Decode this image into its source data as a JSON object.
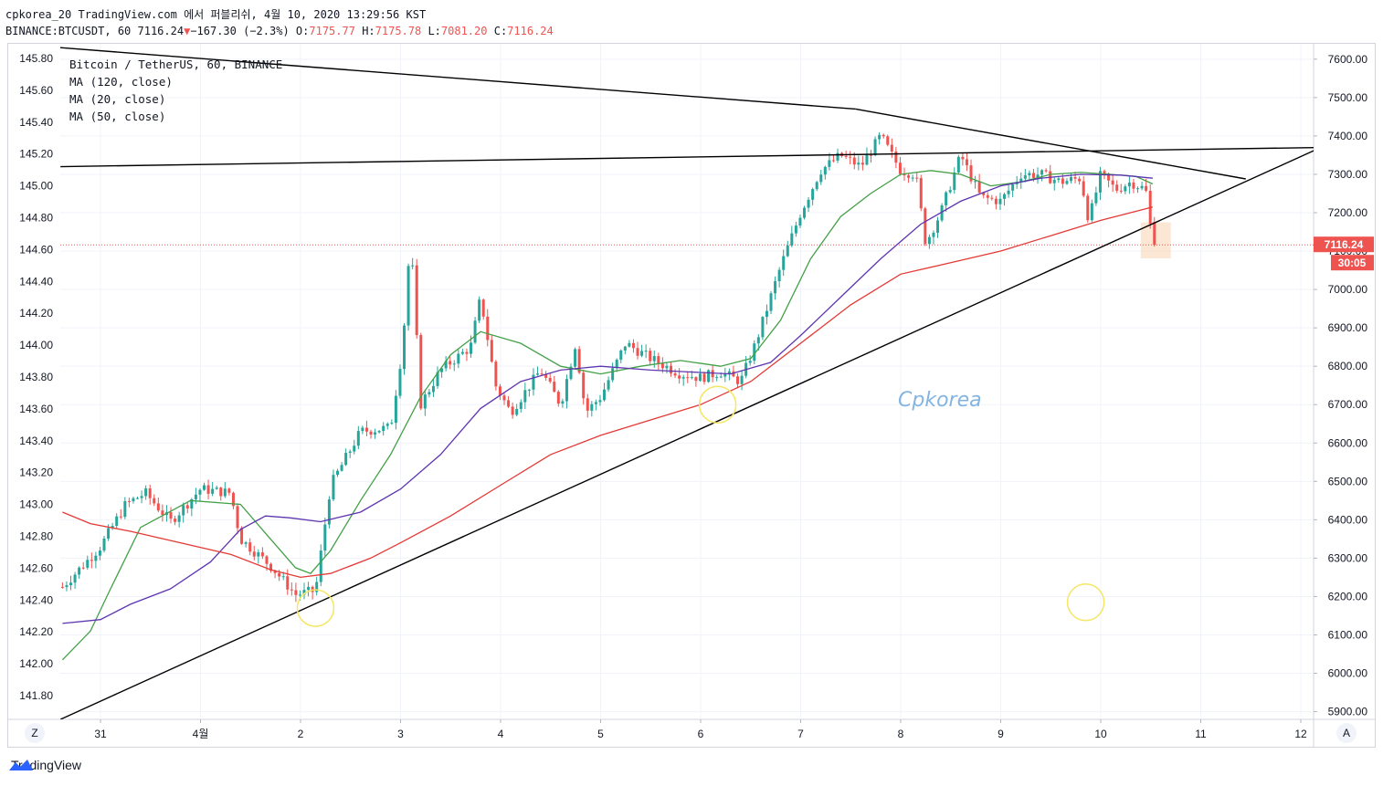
{
  "header": {
    "line1": "cpkorea_20 TradingView.com 에서 퍼블리쉬, 4월 10, 2020 13:29:56 KST",
    "line2_symbol": "BINANCE:BTCUSDT, 60 7116.24",
    "change_arrow": "▼",
    "change": "−167.30 (−2.3%)",
    "o_label": "O:",
    "o_value": "7175.77",
    "h_label": "H:",
    "h_value": "7175.78",
    "l_label": "L:",
    "l_value": "7081.20",
    "c_label": "C:",
    "c_value": "7116.24"
  },
  "legend": {
    "title": "Bitcoin / TetherUS, 60, BINANCE",
    "ma1": "MA (120, close)",
    "ma2": "MA (20, close)",
    "ma3": "MA (50, close)"
  },
  "watermark": "Cpkorea",
  "price_badge": {
    "value": "7116.24",
    "countdown": "30:05"
  },
  "footer": {
    "brand": "TradingView",
    "left_button": "Z",
    "right_button": "A"
  },
  "colors": {
    "up": "#26a69a",
    "down": "#ef5350",
    "ma120": "#e53935",
    "ma20": "#43a047",
    "ma50": "#5e35b1",
    "trendline": "#000000",
    "highlight_circle": "#f5e663",
    "watermark": "#6fa8dc"
  },
  "chart_data": {
    "type": "candlestick",
    "title": "Bitcoin / TetherUS, 60, BINANCE",
    "left_axis_ticks": [
      "145.80",
      "145.60",
      "145.40",
      "145.20",
      "145.00",
      "144.80",
      "144.60",
      "144.40",
      "144.20",
      "144.00",
      "143.80",
      "143.60",
      "143.40",
      "143.20",
      "143.00",
      "142.80",
      "142.60",
      "142.40",
      "142.20",
      "142.00",
      "141.80"
    ],
    "right_axis_ticks": [
      "7600.00",
      "7500.00",
      "7400.00",
      "7300.00",
      "7200.00",
      "7100.00",
      "7000.00",
      "6900.00",
      "6800.00",
      "6700.00",
      "6600.00",
      "6500.00",
      "6400.00",
      "6300.00",
      "6200.00",
      "6100.00",
      "6000.00",
      "5900.00"
    ],
    "x_ticks": [
      "31",
      "4월",
      "2",
      "3",
      "4",
      "5",
      "6",
      "7",
      "8",
      "9",
      "10",
      "11",
      "12"
    ],
    "ylim": [
      5880,
      7640
    ],
    "x_range_days": [
      0,
      12.1
    ],
    "day_ticks_values": [
      0,
      1,
      2,
      3,
      4,
      5,
      6,
      7,
      8,
      9,
      10,
      11,
      12
    ],
    "anchors": [
      [
        -0.38,
        6225
      ],
      [
        0.0,
        6330
      ],
      [
        0.25,
        6440
      ],
      [
        0.45,
        6470
      ],
      [
        0.7,
        6395
      ],
      [
        1.0,
        6480
      ],
      [
        1.3,
        6470
      ],
      [
        1.4,
        6350
      ],
      [
        1.7,
        6280
      ],
      [
        1.95,
        6205
      ],
      [
        2.15,
        6215
      ],
      [
        2.3,
        6490
      ],
      [
        2.6,
        6630
      ],
      [
        2.9,
        6640
      ],
      [
        3.02,
        6850
      ],
      [
        3.1,
        7140
      ],
      [
        3.2,
        6700
      ],
      [
        3.4,
        6790
      ],
      [
        3.7,
        6850
      ],
      [
        3.8,
        6980
      ],
      [
        3.95,
        6750
      ],
      [
        4.1,
        6680
      ],
      [
        4.4,
        6790
      ],
      [
        4.6,
        6700
      ],
      [
        4.75,
        6860
      ],
      [
        4.85,
        6680
      ],
      [
        5.0,
        6720
      ],
      [
        5.25,
        6860
      ],
      [
        5.5,
        6820
      ],
      [
        5.8,
        6780
      ],
      [
        6.0,
        6770
      ],
      [
        6.2,
        6785
      ],
      [
        6.4,
        6760
      ],
      [
        6.55,
        6860
      ],
      [
        6.8,
        7060
      ],
      [
        7.0,
        7200
      ],
      [
        7.2,
        7310
      ],
      [
        7.4,
        7350
      ],
      [
        7.6,
        7320
      ],
      [
        7.8,
        7400
      ],
      [
        8.0,
        7310
      ],
      [
        8.15,
        7300
      ],
      [
        8.25,
        7120
      ],
      [
        8.4,
        7200
      ],
      [
        8.6,
        7350
      ],
      [
        8.8,
        7240
      ],
      [
        9.0,
        7230
      ],
      [
        9.2,
        7300
      ],
      [
        9.4,
        7300
      ],
      [
        9.6,
        7280
      ],
      [
        9.8,
        7290
      ],
      [
        9.88,
        7180
      ],
      [
        10.0,
        7300
      ],
      [
        10.15,
        7260
      ],
      [
        10.3,
        7280
      ],
      [
        10.45,
        7260
      ],
      [
        10.52,
        7116
      ]
    ],
    "last_price": 7116.24,
    "moving_averages": {
      "ma20": [
        [
          -0.38,
          6035
        ],
        [
          -0.1,
          6110
        ],
        [
          0.1,
          6220
        ],
        [
          0.4,
          6380
        ],
        [
          0.9,
          6450
        ],
        [
          1.4,
          6440
        ],
        [
          1.7,
          6350
        ],
        [
          1.95,
          6275
        ],
        [
          2.1,
          6260
        ],
        [
          2.3,
          6320
        ],
        [
          2.6,
          6450
        ],
        [
          2.9,
          6570
        ],
        [
          3.2,
          6720
        ],
        [
          3.5,
          6830
        ],
        [
          3.8,
          6890
        ],
        [
          4.2,
          6860
        ],
        [
          4.6,
          6800
        ],
        [
          5.0,
          6780
        ],
        [
          5.4,
          6800
        ],
        [
          5.8,
          6815
        ],
        [
          6.2,
          6800
        ],
        [
          6.5,
          6820
        ],
        [
          6.8,
          6920
        ],
        [
          7.1,
          7080
        ],
        [
          7.4,
          7190
        ],
        [
          7.7,
          7250
        ],
        [
          8.0,
          7300
        ],
        [
          8.3,
          7310
        ],
        [
          8.6,
          7300
        ],
        [
          8.9,
          7270
        ],
        [
          9.2,
          7280
        ],
        [
          9.5,
          7300
        ],
        [
          9.8,
          7305
        ],
        [
          10.1,
          7300
        ],
        [
          10.35,
          7295
        ],
        [
          10.52,
          7275
        ]
      ],
      "ma50": [
        [
          -0.38,
          6130
        ],
        [
          0.0,
          6140
        ],
        [
          0.3,
          6180
        ],
        [
          0.7,
          6220
        ],
        [
          1.1,
          6290
        ],
        [
          1.4,
          6375
        ],
        [
          1.65,
          6410
        ],
        [
          1.9,
          6405
        ],
        [
          2.2,
          6395
        ],
        [
          2.6,
          6420
        ],
        [
          3.0,
          6480
        ],
        [
          3.4,
          6570
        ],
        [
          3.8,
          6690
        ],
        [
          4.2,
          6760
        ],
        [
          4.6,
          6790
        ],
        [
          5.0,
          6800
        ],
        [
          5.5,
          6790
        ],
        [
          5.9,
          6785
        ],
        [
          6.3,
          6780
        ],
        [
          6.7,
          6810
        ],
        [
          7.0,
          6880
        ],
        [
          7.4,
          6980
        ],
        [
          7.8,
          7080
        ],
        [
          8.2,
          7170
        ],
        [
          8.6,
          7230
        ],
        [
          9.0,
          7270
        ],
        [
          9.4,
          7290
        ],
        [
          9.8,
          7300
        ],
        [
          10.2,
          7298
        ],
        [
          10.52,
          7290
        ]
      ],
      "ma120": [
        [
          -0.38,
          6420
        ],
        [
          -0.1,
          6390
        ],
        [
          0.3,
          6370
        ],
        [
          0.8,
          6340
        ],
        [
          1.3,
          6310
        ],
        [
          1.7,
          6270
        ],
        [
          2.0,
          6250
        ],
        [
          2.3,
          6260
        ],
        [
          2.7,
          6300
        ],
        [
          3.0,
          6340
        ],
        [
          3.5,
          6410
        ],
        [
          4.0,
          6490
        ],
        [
          4.5,
          6570
        ],
        [
          5.0,
          6620
        ],
        [
          5.5,
          6660
        ],
        [
          6.0,
          6700
        ],
        [
          6.5,
          6760
        ],
        [
          7.0,
          6860
        ],
        [
          7.5,
          6960
        ],
        [
          8.0,
          7040
        ],
        [
          8.5,
          7070
        ],
        [
          9.0,
          7100
        ],
        [
          9.5,
          7140
        ],
        [
          10.0,
          7180
        ],
        [
          10.52,
          7215
        ]
      ]
    },
    "trendlines": [
      {
        "from": [
          -0.9,
          7640
        ],
        "to": [
          7.55,
          7470
        ]
      },
      {
        "from": [
          7.55,
          7470
        ],
        "to": [
          11.45,
          7288
        ]
      },
      {
        "from": [
          -0.4,
          5880
        ],
        "to": [
          12.2,
          7370
        ]
      },
      {
        "from": [
          -0.4,
          7320
        ],
        "to": [
          12.2,
          7370
        ]
      }
    ],
    "highlight_circles": [
      [
        2.15,
        6170
      ],
      [
        6.17,
        6700
      ],
      [
        9.85,
        6185
      ]
    ],
    "last_bar_highlight": {
      "from": [
        10.4,
        7175
      ],
      "to": [
        10.7,
        7081
      ]
    }
  }
}
